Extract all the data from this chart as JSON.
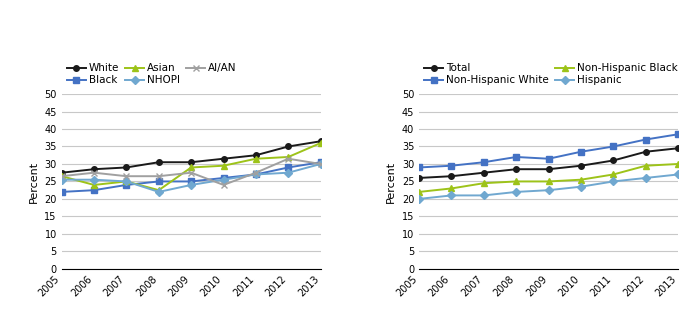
{
  "years": [
    2005,
    2006,
    2007,
    2008,
    2009,
    2010,
    2011,
    2012,
    2013
  ],
  "left_panel": {
    "White": [
      27.5,
      28.5,
      29.0,
      30.5,
      30.5,
      31.5,
      32.5,
      35.0,
      36.5
    ],
    "Black": [
      22.0,
      22.5,
      24.0,
      25.0,
      25.0,
      26.0,
      27.0,
      29.0,
      30.5
    ],
    "Asian": [
      26.5,
      24.0,
      25.0,
      22.5,
      29.0,
      29.5,
      31.5,
      32.0,
      36.0
    ],
    "NHOPI": [
      25.5,
      25.5,
      25.0,
      22.0,
      24.0,
      25.5,
      27.0,
      27.5,
      30.0
    ],
    "AI/AN": [
      26.5,
      27.5,
      26.5,
      26.5,
      27.5,
      24.0,
      27.5,
      31.5,
      30.0
    ]
  },
  "right_panel": {
    "Total": [
      26.0,
      26.5,
      27.5,
      28.5,
      28.5,
      29.5,
      31.0,
      33.5,
      34.5
    ],
    "Non-Hispanic White": [
      29.0,
      29.5,
      30.5,
      32.0,
      31.5,
      33.5,
      35.0,
      37.0,
      38.5
    ],
    "Non-Hispanic Black": [
      22.0,
      23.0,
      24.5,
      25.0,
      25.0,
      25.5,
      27.0,
      29.5,
      30.0
    ],
    "Hispanic": [
      20.0,
      21.0,
      21.0,
      22.0,
      22.5,
      23.5,
      25.0,
      26.0,
      27.0
    ]
  },
  "left_series_styles": {
    "White": {
      "color": "#1a1a1a",
      "marker": "o",
      "linestyle": "-"
    },
    "Black": {
      "color": "#4472c4",
      "marker": "s",
      "linestyle": "-"
    },
    "Asian": {
      "color": "#9dc319",
      "marker": "^",
      "linestyle": "-"
    },
    "NHOPI": {
      "color": "#70a8d0",
      "marker": "D",
      "linestyle": "-"
    },
    "AI/AN": {
      "color": "#a0a0a0",
      "marker": "x",
      "linestyle": "-"
    }
  },
  "right_series_styles": {
    "Total": {
      "color": "#1a1a1a",
      "marker": "o",
      "linestyle": "-"
    },
    "Non-Hispanic White": {
      "color": "#4472c4",
      "marker": "s",
      "linestyle": "-"
    },
    "Non-Hispanic Black": {
      "color": "#9dc319",
      "marker": "^",
      "linestyle": "-"
    },
    "Hispanic": {
      "color": "#70a8d0",
      "marker": "D",
      "linestyle": "-"
    }
  },
  "ylim": [
    0,
    50
  ],
  "yticks": [
    0,
    5,
    10,
    15,
    20,
    25,
    30,
    35,
    40,
    45,
    50
  ],
  "ylabel": "Percent",
  "background_color": "#ffffff",
  "grid_color": "#c8c8c8",
  "marker_size": 4,
  "linewidth": 1.4,
  "tick_fontsize": 7,
  "label_fontsize": 8,
  "legend_fontsize": 7.5
}
